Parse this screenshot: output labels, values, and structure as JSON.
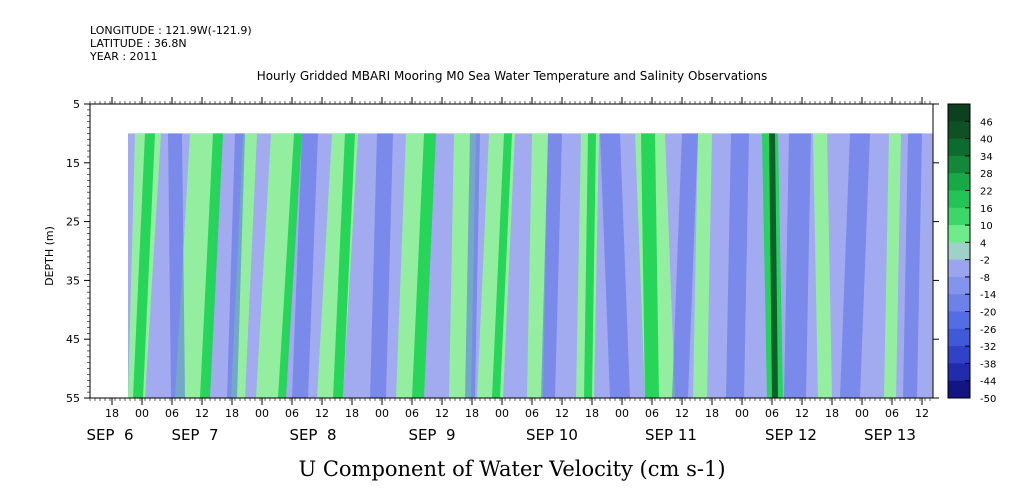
{
  "header": {
    "longitude": "LONGITUDE : 121.9W(-121.9)",
    "latitude": "LATITUDE : 36.8N",
    "year": "YEAR : 2011"
  },
  "chart_data": {
    "type": "heatmap",
    "title": "Hourly Gridded MBARI Mooring M0 Sea Water Temperature and Salinity Observations",
    "xlabel": "U Component of Water Velocity (cm s-1)",
    "ylabel": "DEPTH (m)",
    "ylim": [
      5,
      55
    ],
    "y_inverted": true,
    "y_ticks": [
      5,
      15,
      25,
      35,
      45,
      55
    ],
    "data_depth_range": [
      10,
      55
    ],
    "hour_tick_labels": [
      "18",
      "00",
      "06",
      "12",
      "18",
      "00",
      "06",
      "12",
      "18",
      "00",
      "06",
      "12",
      "18",
      "00",
      "06",
      "12",
      "18",
      "00",
      "06",
      "12",
      "18",
      "00",
      "06",
      "12",
      "18",
      "00",
      "06",
      "12"
    ],
    "day_labels": [
      "SEP  6",
      "SEP  7",
      "SEP  8",
      "SEP  9",
      "SEP 10",
      "SEP 11",
      "SEP 12",
      "SEP 13"
    ],
    "colorbar": {
      "levels": [
        48,
        46,
        40,
        34,
        28,
        22,
        16,
        10,
        4,
        -2,
        -8,
        -14,
        -20,
        -26,
        -32,
        -38,
        -44,
        -50
      ],
      "tick_labels": [
        "46",
        "40",
        "34",
        "28",
        "22",
        "16",
        "10",
        "4",
        "-2",
        "-8",
        "-14",
        "-20",
        "-26",
        "-32",
        "-38",
        "-44",
        "-50"
      ]
    },
    "colors": {
      "strong_positive": "#0c5a26",
      "positive": "#21d455",
      "weak_positive": "#93f19a",
      "weak_negative": "#a3abf0",
      "negative": "#5870e6",
      "strong_negative": "#0a0a6e"
    }
  }
}
